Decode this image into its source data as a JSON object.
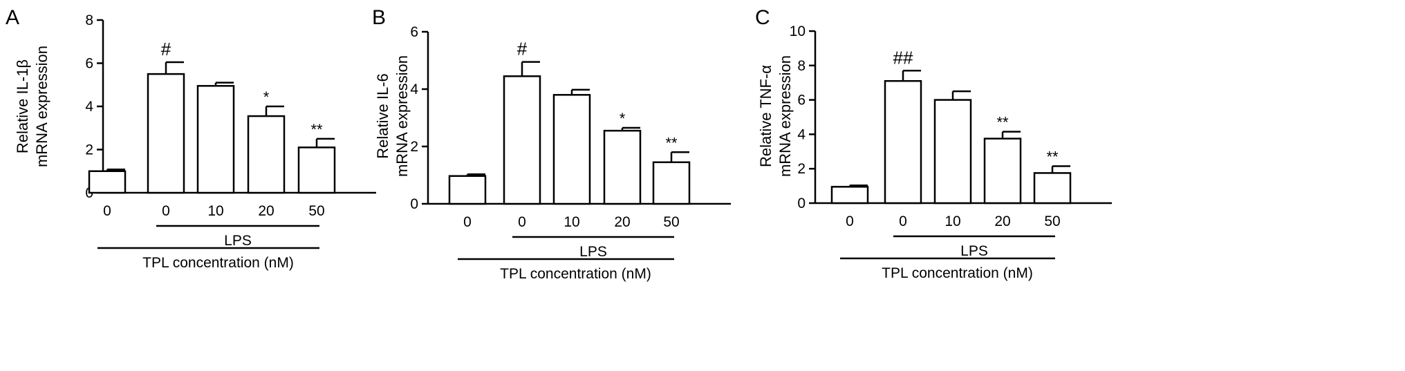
{
  "chart_data": [
    {
      "type": "bar",
      "panel": "A",
      "ylabel": [
        "Relative IL-1β",
        "mRNA expression"
      ],
      "ylim": [
        0,
        8
      ],
      "yticks": [
        0,
        2,
        4,
        6,
        8
      ],
      "categories": [
        "0",
        "0",
        "10",
        "20",
        "50"
      ],
      "values": [
        1.0,
        5.5,
        4.95,
        3.55,
        2.1
      ],
      "errors": [
        0.08,
        0.55,
        0.15,
        0.45,
        0.4
      ],
      "annotations": [
        "",
        "#",
        "",
        "*",
        "**"
      ],
      "groups": [
        {
          "label": "LPS",
          "from": 1,
          "to": 4
        },
        {
          "label": "TPL concentration (nM)",
          "from": 0,
          "to": 4
        }
      ],
      "grid": false,
      "legend": "none"
    },
    {
      "type": "bar",
      "panel": "B",
      "ylabel": [
        "Relative IL-6",
        "mRNA expression"
      ],
      "ylim": [
        0,
        6
      ],
      "yticks": [
        0,
        2,
        4,
        6
      ],
      "categories": [
        "0",
        "0",
        "10",
        "20",
        "50"
      ],
      "values": [
        0.97,
        4.45,
        3.8,
        2.55,
        1.45
      ],
      "errors": [
        0.06,
        0.5,
        0.18,
        0.1,
        0.35
      ],
      "annotations": [
        "",
        "#",
        "",
        "*",
        "**"
      ],
      "groups": [
        {
          "label": "LPS",
          "from": 1,
          "to": 4
        },
        {
          "label": "TPL concentration (nM)",
          "from": 0,
          "to": 4
        }
      ],
      "grid": false,
      "legend": "none"
    },
    {
      "type": "bar",
      "panel": "C",
      "ylabel": [
        "Relative TNF-α",
        "mRNA expression"
      ],
      "ylim": [
        0,
        10
      ],
      "yticks": [
        0,
        2,
        4,
        6,
        8,
        10
      ],
      "categories": [
        "0",
        "0",
        "10",
        "20",
        "50"
      ],
      "values": [
        0.95,
        7.1,
        6.0,
        3.75,
        1.75
      ],
      "errors": [
        0.08,
        0.6,
        0.5,
        0.4,
        0.4
      ],
      "annotations": [
        "",
        "##",
        "",
        "**",
        "**"
      ],
      "groups": [
        {
          "label": "LPS",
          "from": 1,
          "to": 4
        },
        {
          "label": "TPL concentration (nM)",
          "from": 0,
          "to": 4
        }
      ],
      "grid": false,
      "legend": "none"
    }
  ]
}
